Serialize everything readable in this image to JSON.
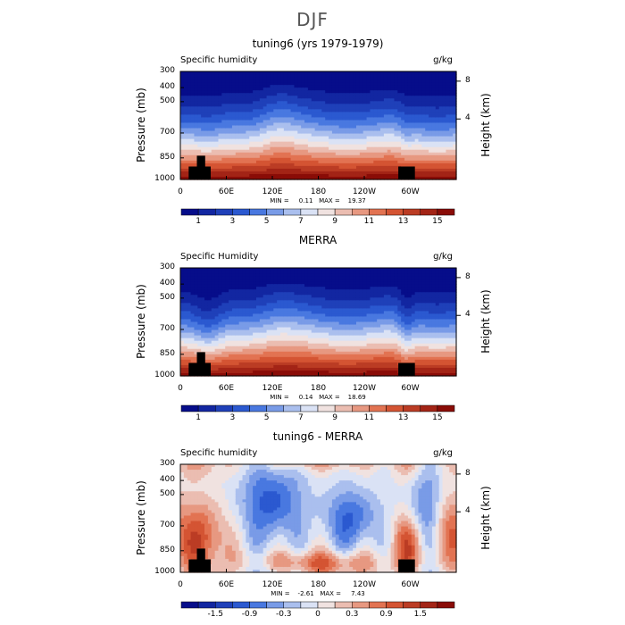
{
  "title": "DJF",
  "colors": {
    "blue_dark": "#00007e",
    "blue_mid": "#3166dc",
    "white": "#f2f4f8",
    "red_mid": "#e0603a",
    "red_dark": "#7e0000",
    "terrain": "#000000"
  },
  "chart_data": [
    {
      "type": "heatmap",
      "title": "tuning6 (yrs 1979-1979)",
      "variable_label": "Specific humidity",
      "units": "g/kg",
      "min_max_text": "MIN =     0.11   MAX =    19.37",
      "xlabel": "",
      "ylabel": "Pressure (mb)",
      "y2label": "Height (km)",
      "x_tick_labels": [
        "0",
        "60E",
        "120E",
        "180",
        "120W",
        "60W"
      ],
      "y_tick_labels": [
        "300",
        "400",
        "500",
        "700",
        "850",
        "1000"
      ],
      "y2_tick_labels": [
        "8",
        "4"
      ],
      "colorbar_labels": [
        "1",
        "3",
        "5",
        "7",
        "9",
        "11",
        "13",
        "15"
      ],
      "colorbar_levels": 16,
      "ylim": [
        1000,
        300
      ]
    },
    {
      "type": "heatmap",
      "title": "MERRA",
      "variable_label": "Specific Humidity",
      "units": "g/kg",
      "min_max_text": "MIN =     0.14   MAX =    18.69",
      "xlabel": "",
      "ylabel": "Pressure (mb)",
      "y2label": "Height (km)",
      "x_tick_labels": [
        "0",
        "60E",
        "120E",
        "180",
        "120W",
        "60W"
      ],
      "y_tick_labels": [
        "300",
        "400",
        "500",
        "700",
        "850",
        "1000"
      ],
      "y2_tick_labels": [
        "8",
        "4"
      ],
      "colorbar_labels": [
        "1",
        "3",
        "5",
        "7",
        "9",
        "11",
        "13",
        "15"
      ],
      "colorbar_levels": 16,
      "ylim": [
        1000,
        300
      ]
    },
    {
      "type": "heatmap",
      "title": "tuning6 - MERRA",
      "variable_label": "Specific humidity",
      "units": "g/kg",
      "min_max_text": "MIN =    -2.61   MAX =     7.43",
      "xlabel": "",
      "ylabel": "Pressure (mb)",
      "y2label": "Height (km)",
      "x_tick_labels": [
        "0",
        "60E",
        "120E",
        "180",
        "120W",
        "60W"
      ],
      "y_tick_labels": [
        "300",
        "400",
        "500",
        "700",
        "850",
        "1000"
      ],
      "y2_tick_labels": [
        "8",
        "4"
      ],
      "colorbar_labels": [
        "-1.5",
        "-0.9",
        "-0.3",
        "0",
        "0.3",
        "0.9",
        "1.5"
      ],
      "colorbar_levels": 16,
      "ylim": [
        1000,
        300
      ]
    }
  ]
}
